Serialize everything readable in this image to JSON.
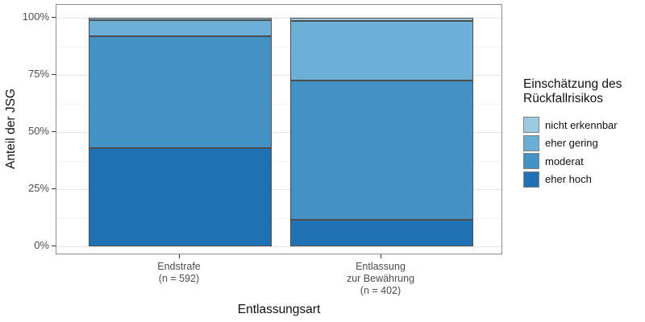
{
  "window": {
    "background": "#ffffff"
  },
  "y_axis": {
    "title": "Anteil der JSG",
    "tick_labels": [
      "0%",
      "25%",
      "50%",
      "75%",
      "100%"
    ],
    "tick_values": [
      0,
      25,
      50,
      75,
      100
    ]
  },
  "x_axis": {
    "title": "Entlassungsart",
    "category_labels": [
      "Endstrafe\n(n = 592)",
      "Entlassung\nzur Bewährung\n(n = 402)"
    ]
  },
  "legend": {
    "title": "Einschätzung des\nRückfallrisikos"
  },
  "chart_data": {
    "type": "bar",
    "stacked": true,
    "orientation": "vertical",
    "unit": "percent",
    "title": "",
    "xlabel": "Entlassungsart",
    "ylabel": "Anteil der JSG",
    "ylim": [
      0,
      100
    ],
    "y_ticks": [
      0,
      25,
      50,
      75,
      100
    ],
    "y_minor_ticks": [
      12.5,
      37.5,
      62.5,
      87.5
    ],
    "grid": true,
    "legend_position": "right",
    "legend_title": "Einschätzung des Rückfallrisikos",
    "categories": [
      "Endstrafe (n = 592)",
      "Entlassung zur Bewährung (n = 402)"
    ],
    "sample_sizes": [
      592,
      402
    ],
    "series": [
      {
        "name": "nicht erkennbar",
        "color": "#9ecae1",
        "values": [
          1,
          1.5
        ]
      },
      {
        "name": "eher gering",
        "color": "#6baed6",
        "values": [
          7,
          26
        ]
      },
      {
        "name": "moderat",
        "color": "#4292c6",
        "values": [
          49,
          61
        ]
      },
      {
        "name": "eher hoch",
        "color": "#2171b5",
        "values": [
          43,
          11.5
        ]
      }
    ],
    "stack_order_bottom_to_top": [
      "eher hoch",
      "moderat",
      "eher gering",
      "nicht erkennbar"
    ],
    "style": {
      "bar_border_color": "#4d4d4d",
      "panel_border_color": "#8c8c8c",
      "grid_major_color": "#e4e4e4",
      "grid_minor_color": "#f2f2f2",
      "axis_text_color": "#4d4d4d"
    }
  }
}
